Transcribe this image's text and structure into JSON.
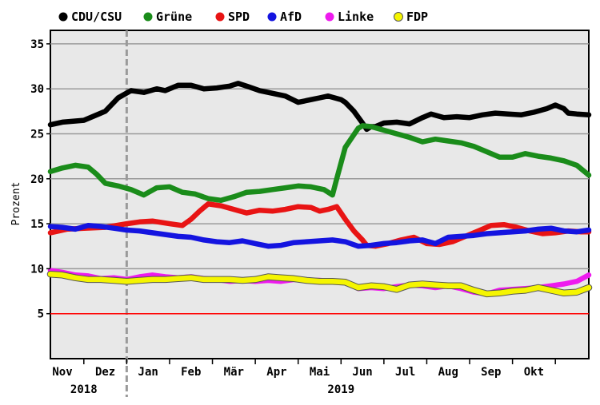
{
  "chart_data": {
    "type": "line",
    "title": "",
    "xlabel": "",
    "ylabel": "Prozent",
    "ylim": [
      0,
      36.5
    ],
    "yticks": [
      5,
      10,
      15,
      20,
      25,
      30,
      35
    ],
    "reference_line": {
      "value": 5,
      "color": "#ff0000"
    },
    "x_months": [
      "Nov",
      "Dez",
      "Jan",
      "Feb",
      "Mär",
      "Apr",
      "Mai",
      "Jun",
      "Jul",
      "Aug",
      "Sep",
      "Okt"
    ],
    "x_years": [
      {
        "label": "2018",
        "month_index": 0.5
      },
      {
        "label": "2019",
        "month_index": 6.5
      }
    ],
    "xlim": [
      -0.28,
      12.28
    ],
    "year_boundary_index": 1.5,
    "series": [
      {
        "name": "CDU/CSU",
        "color": "#000000",
        "x": [
          -0.28,
          0,
          0.5,
          1,
          1.3,
          1.6,
          1.9,
          2.2,
          2.4,
          2.7,
          3,
          3.3,
          3.6,
          3.9,
          4.1,
          4.3,
          4.6,
          4.9,
          5.2,
          5.5,
          5.8,
          6,
          6.2,
          6.5,
          6.6,
          6.8,
          7,
          7.1,
          7.2,
          7.3,
          7.5,
          7.8,
          8.1,
          8.4,
          8.6,
          8.9,
          9.2,
          9.5,
          9.8,
          10.1,
          10.4,
          10.7,
          11,
          11.3,
          11.5,
          11.7,
          11.8,
          12,
          12.28
        ],
        "y": [
          26,
          26.3,
          26.5,
          27.5,
          29,
          29.8,
          29.6,
          30,
          29.8,
          30.4,
          30.4,
          30,
          30.1,
          30.3,
          30.6,
          30.3,
          29.8,
          29.5,
          29.2,
          28.5,
          28.8,
          29,
          29.2,
          28.8,
          28.5,
          27.5,
          26.2,
          25.5,
          25.8,
          25.8,
          26.2,
          26.3,
          26.1,
          26.8,
          27.2,
          26.8,
          26.9,
          26.8,
          27.1,
          27.3,
          27.2,
          27.1,
          27.4,
          27.8,
          28.2,
          27.8,
          27.3,
          27.2,
          27.1
        ]
      },
      {
        "name": "Grüne",
        "color": "#1a8c1a",
        "x": [
          -0.28,
          0,
          0.3,
          0.6,
          0.8,
          1,
          1.3,
          1.6,
          1.9,
          2.2,
          2.5,
          2.8,
          3.1,
          3.4,
          3.7,
          4,
          4.3,
          4.6,
          4.9,
          5.2,
          5.5,
          5.8,
          6.1,
          6.3,
          6.4,
          6.6,
          6.9,
          7,
          7.2,
          7.5,
          7.8,
          8.1,
          8.4,
          8.7,
          9,
          9.3,
          9.6,
          9.9,
          10.2,
          10.5,
          10.8,
          11.1,
          11.4,
          11.7,
          12,
          12.28
        ],
        "y": [
          20.8,
          21.2,
          21.5,
          21.3,
          20.5,
          19.5,
          19.2,
          18.8,
          18.2,
          19,
          19.1,
          18.5,
          18.3,
          17.8,
          17.6,
          18,
          18.5,
          18.6,
          18.8,
          19,
          19.2,
          19.1,
          18.8,
          18.2,
          20,
          23.5,
          25.6,
          25.9,
          25.8,
          25.4,
          25,
          24.6,
          24.1,
          24.4,
          24.2,
          24,
          23.6,
          23,
          22.4,
          22.4,
          22.8,
          22.5,
          22.3,
          22,
          21.5,
          20.4
        ]
      },
      {
        "name": "SPD",
        "color": "#e81414",
        "x": [
          -0.28,
          0.1,
          0.5,
          1,
          1.5,
          1.8,
          2.1,
          2.5,
          2.8,
          3,
          3.2,
          3.4,
          3.7,
          4,
          4.3,
          4.6,
          4.9,
          5.2,
          5.5,
          5.8,
          6,
          6.2,
          6.4,
          6.6,
          6.8,
          7,
          7.1,
          7.3,
          7.6,
          7.9,
          8.2,
          8.5,
          8.8,
          9.1,
          9.4,
          9.7,
          10,
          10.3,
          10.6,
          10.9,
          11.2,
          11.5,
          11.8,
          12.1,
          12.28
        ],
        "y": [
          14,
          14.4,
          14.5,
          14.6,
          15,
          15.2,
          15.3,
          15,
          14.8,
          15.5,
          16.4,
          17.2,
          17,
          16.6,
          16.2,
          16.5,
          16.4,
          16.6,
          16.9,
          16.8,
          16.4,
          16.6,
          16.9,
          15.5,
          14.2,
          13.2,
          12.6,
          12.5,
          12.8,
          13.2,
          13.5,
          12.8,
          12.7,
          13,
          13.6,
          14.2,
          14.8,
          14.9,
          14.6,
          14.2,
          13.9,
          14,
          14.2,
          14.1,
          14.1
        ]
      },
      {
        "name": "AfD",
        "color": "#1414e0",
        "x": [
          -0.28,
          0,
          0.3,
          0.6,
          0.9,
          1.2,
          1.5,
          1.8,
          2.1,
          2.4,
          2.7,
          3,
          3.3,
          3.6,
          3.9,
          4.2,
          4.5,
          4.8,
          5.1,
          5.4,
          5.7,
          6,
          6.3,
          6.6,
          6.9,
          7.2,
          7.5,
          7.8,
          8.1,
          8.4,
          8.7,
          9,
          9.3,
          9.6,
          9.9,
          10.2,
          10.5,
          10.8,
          11.1,
          11.4,
          11.7,
          12,
          12.28
        ],
        "y": [
          14.7,
          14.6,
          14.4,
          14.8,
          14.7,
          14.5,
          14.3,
          14.2,
          14,
          13.8,
          13.6,
          13.5,
          13.2,
          13,
          12.9,
          13.1,
          12.8,
          12.5,
          12.6,
          12.9,
          13,
          13.1,
          13.2,
          13,
          12.5,
          12.6,
          12.8,
          12.9,
          13.1,
          13.2,
          12.8,
          13.5,
          13.6,
          13.7,
          13.9,
          14,
          14.1,
          14.2,
          14.4,
          14.5,
          14.2,
          14.1,
          14.3
        ]
      },
      {
        "name": "Linke",
        "color": "#ee1aee",
        "x": [
          -0.28,
          0,
          0.3,
          0.6,
          0.9,
          1.2,
          1.5,
          1.8,
          2.1,
          2.4,
          2.7,
          3,
          3.3,
          3.6,
          3.9,
          4.2,
          4.5,
          4.8,
          5.1,
          5.4,
          5.7,
          6,
          6.3,
          6.6,
          6.9,
          7.2,
          7.5,
          7.8,
          8.1,
          8.4,
          8.7,
          9,
          9.3,
          9.6,
          9.9,
          10.2,
          10.5,
          10.8,
          11.1,
          11.4,
          11.7,
          12,
          12.28
        ],
        "y": [
          9.8,
          9.6,
          9.3,
          9.2,
          8.9,
          9,
          8.8,
          9.1,
          9.3,
          9.1,
          9,
          9.1,
          8.9,
          8.8,
          8.6,
          8.7,
          8.6,
          8.7,
          8.6,
          8.8,
          8.7,
          8.7,
          8.6,
          8.6,
          7.8,
          7.9,
          7.8,
          8,
          8.2,
          8.1,
          7.9,
          8.1,
          7.8,
          7.4,
          7.2,
          7.6,
          7.7,
          7.8,
          7.9,
          8.1,
          8.3,
          8.6,
          9.3
        ]
      },
      {
        "name": "FDP",
        "color": "#f5f500",
        "x": [
          -0.28,
          0,
          0.3,
          0.6,
          0.9,
          1.2,
          1.5,
          1.8,
          2.1,
          2.4,
          2.7,
          3,
          3.3,
          3.6,
          3.9,
          4.2,
          4.5,
          4.8,
          5.1,
          5.4,
          5.7,
          6,
          6.3,
          6.6,
          6.9,
          7.2,
          7.5,
          7.8,
          8.1,
          8.4,
          8.7,
          9,
          9.3,
          9.6,
          9.9,
          10.2,
          10.5,
          10.8,
          11.1,
          11.4,
          11.7,
          12,
          12.28
        ],
        "y": [
          9.4,
          9.3,
          9,
          8.8,
          8.8,
          8.7,
          8.6,
          8.7,
          8.8,
          8.8,
          8.9,
          9,
          8.8,
          8.8,
          8.8,
          8.7,
          8.8,
          9.1,
          9,
          8.9,
          8.7,
          8.6,
          8.6,
          8.5,
          7.9,
          8.1,
          8,
          7.7,
          8.2,
          8.3,
          8.2,
          8.1,
          8.1,
          7.6,
          7.2,
          7.3,
          7.5,
          7.6,
          7.9,
          7.6,
          7.3,
          7.4,
          7.9
        ]
      }
    ]
  }
}
